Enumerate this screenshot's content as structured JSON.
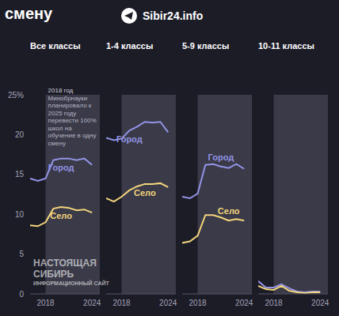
{
  "title": "смену",
  "source": "Sibir24.info",
  "watermark": [
    "НАСТОЯЩАЯ",
    "СИБИРЬ",
    "ИНФОРМАЦИОННЫЙ САЙТ"
  ],
  "chart_data": [
    {
      "type": "line",
      "title": "Все классы",
      "x": [
        2016,
        2017,
        2018,
        2019,
        2020,
        2021,
        2022,
        2023,
        2024
      ],
      "xlim": [
        2016,
        2025
      ],
      "xticks": [
        2018,
        2024
      ],
      "ylim": [
        0,
        25
      ],
      "yticks": [
        0,
        5,
        10,
        15,
        20,
        {
          "value": 25,
          "label": "25%"
        }
      ],
      "grid": false,
      "shaded_from": 2018,
      "annotation": {
        "title": "2018 год",
        "text": "Минобрнауки планировало к 2025 году перевести 100% школ на обучение в одну смену"
      },
      "series": [
        {
          "name": "Город",
          "color": "#9294e6",
          "values": [
            14.5,
            14.2,
            14.5,
            16.8,
            17.0,
            17.0,
            16.8,
            17.0,
            16.2
          ]
        },
        {
          "name": "Село",
          "color": "#f3d57c",
          "values": [
            8.6,
            8.5,
            9.0,
            10.7,
            10.9,
            10.8,
            10.5,
            10.6,
            10.2
          ]
        }
      ]
    },
    {
      "type": "line",
      "title": "1-4 классы",
      "x": [
        2016,
        2017,
        2018,
        2019,
        2020,
        2021,
        2022,
        2023,
        2024
      ],
      "xlim": [
        2016,
        2025
      ],
      "xticks": [
        2018,
        2024
      ],
      "ylim": [
        0,
        25
      ],
      "yticks": [
        0,
        5,
        10,
        15,
        20,
        {
          "value": 25,
          "label": "25%"
        }
      ],
      "tick_labels": "x",
      "grid": false,
      "shaded_from": 2018,
      "series": [
        {
          "name": "Город",
          "color": "#9294e6",
          "values": [
            19.6,
            19.3,
            19.5,
            20.5,
            21.0,
            21.6,
            21.5,
            21.6,
            20.3
          ]
        },
        {
          "name": "Село",
          "color": "#f3d57c",
          "values": [
            12.0,
            11.6,
            12.2,
            13.0,
            13.5,
            13.8,
            13.8,
            13.9,
            13.4
          ]
        }
      ]
    },
    {
      "type": "line",
      "title": "5-9 классы",
      "x": [
        2016,
        2017,
        2018,
        2019,
        2020,
        2021,
        2022,
        2023,
        2024
      ],
      "xlim": [
        2016,
        2025
      ],
      "xticks": [
        2018,
        2024
      ],
      "ylim": [
        0,
        25
      ],
      "yticks": [
        0,
        5,
        10,
        15,
        20,
        {
          "value": 25,
          "label": "25%"
        }
      ],
      "tick_labels": "x",
      "grid": false,
      "shaded_from": 2018,
      "series": [
        {
          "name": "Город",
          "color": "#9294e6",
          "values": [
            12.2,
            12.0,
            12.6,
            16.2,
            16.3,
            16.0,
            15.8,
            16.3,
            15.7
          ]
        },
        {
          "name": "Село",
          "color": "#f3d57c",
          "values": [
            6.4,
            6.6,
            7.3,
            9.9,
            9.9,
            9.6,
            9.2,
            9.4,
            9.2
          ]
        }
      ]
    },
    {
      "type": "line",
      "title": "10-11 классы",
      "x": [
        2016,
        2017,
        2018,
        2019,
        2020,
        2021,
        2022,
        2023,
        2024
      ],
      "xlim": [
        2016,
        2025
      ],
      "xticks": [
        2018,
        2024
      ],
      "ylim": [
        0,
        25
      ],
      "yticks": [
        0,
        5,
        10,
        15,
        20,
        {
          "value": 25,
          "label": "25%"
        }
      ],
      "tick_labels": "x",
      "grid": false,
      "shaded_from": 2018,
      "series": [
        {
          "name": "Город",
          "color": "#9294e6",
          "values": [
            1.6,
            0.8,
            0.8,
            1.2,
            0.7,
            0.3,
            0.2,
            0.3,
            0.3
          ]
        },
        {
          "name": "Село",
          "color": "#f3d57c",
          "values": [
            1.0,
            0.6,
            0.5,
            1.0,
            0.4,
            0.2,
            0.1,
            0.2,
            0.2
          ]
        }
      ]
    }
  ]
}
